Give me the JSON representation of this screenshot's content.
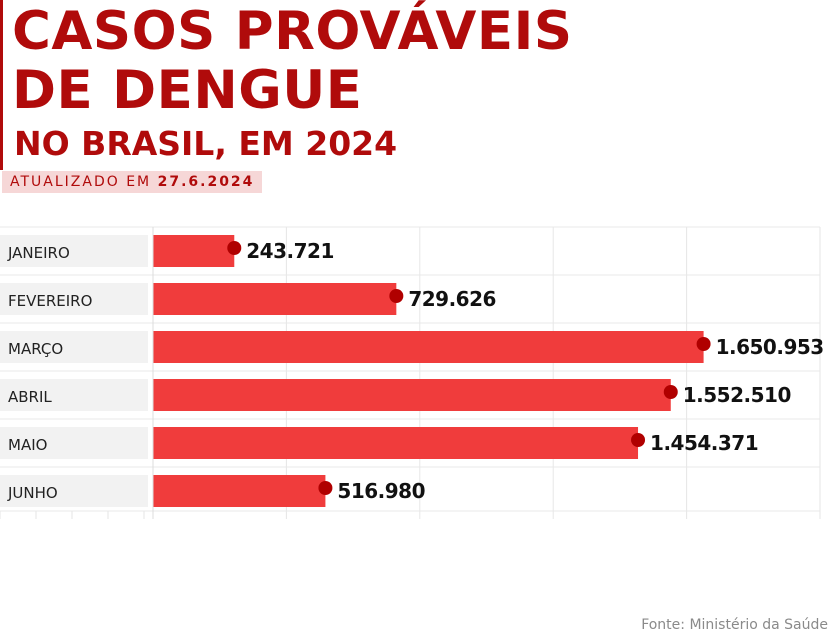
{
  "header": {
    "title_line1": "CASOS PROVÁVEIS",
    "title_line2": "DE DENGUE",
    "subtitle": "NO BRASIL, EM 2024",
    "updated_prefix": "ATUALIZADO EM",
    "updated_date": "27.6.2024"
  },
  "footer": {
    "source": "Fonte: Ministério da Saúde"
  },
  "colors": {
    "title": "#b00b0b",
    "bar": "#f03c3c",
    "dot": "#b00000",
    "label_bg": "#f2f2f2",
    "updated_bg": "#f6d7d7",
    "updated_text": "#b00b0b",
    "value_text": "#111111",
    "category_text": "#222222",
    "source_text": "#8a8a8a"
  },
  "chart_data": {
    "type": "bar",
    "orientation": "horizontal",
    "categories": [
      "JANEIRO",
      "FEVEREIRO",
      "MARÇO",
      "ABRIL",
      "MAIO",
      "JUNHO"
    ],
    "values": [
      243721,
      729626,
      1650953,
      1552510,
      1454371,
      516980
    ],
    "value_labels": [
      "243.721",
      "729.626",
      "1.650.953",
      "1.552.510",
      "1.454.371",
      "516.980"
    ],
    "xlim": [
      0,
      2000000
    ],
    "grid": true,
    "legend": "none"
  }
}
